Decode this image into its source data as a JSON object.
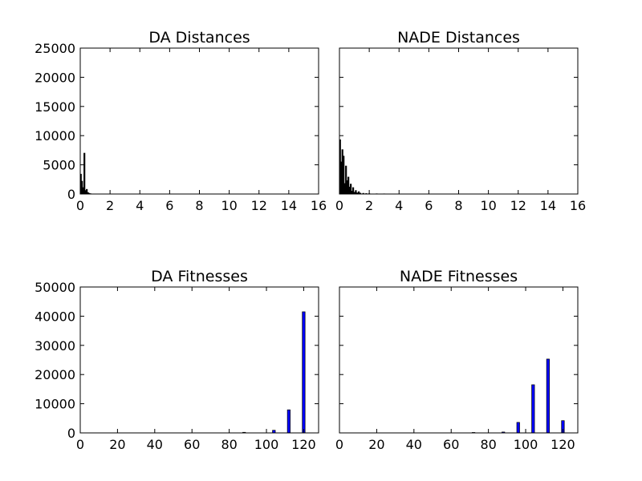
{
  "chart_data": [
    {
      "type": "bar",
      "title": "DA Distances",
      "xlabel": "",
      "ylabel": "",
      "xlim": [
        0,
        16
      ],
      "ylim": [
        0,
        25000
      ],
      "xticks": [
        0,
        2,
        4,
        6,
        8,
        10,
        12,
        14,
        16
      ],
      "yticks": [
        0,
        5000,
        10000,
        15000,
        20000,
        25000
      ],
      "bar_color": "#000000",
      "bin_width": 0.08,
      "x": [
        0.04,
        0.12,
        0.2,
        0.28,
        0.36,
        0.44,
        0.52,
        0.6,
        0.68
      ],
      "values": [
        3400,
        2200,
        1100,
        7000,
        600,
        800,
        250,
        120,
        60
      ]
    },
    {
      "type": "bar",
      "title": "NADE Distances",
      "xlabel": "",
      "ylabel": "",
      "xlim": [
        0,
        16
      ],
      "ylim": [
        0,
        25000
      ],
      "xticks": [
        0,
        2,
        4,
        6,
        8,
        10,
        12,
        14,
        16
      ],
      "yticks": [
        0,
        5000,
        10000,
        15000,
        20000,
        25000
      ],
      "bar_color": "#000000",
      "bin_width": 0.08,
      "x": [
        0.04,
        0.12,
        0.2,
        0.28,
        0.36,
        0.44,
        0.52,
        0.6,
        0.68,
        0.76,
        0.84,
        0.92,
        1.0,
        1.1,
        1.2,
        1.3,
        1.4,
        1.6,
        1.8,
        2.0,
        2.5,
        3.0
      ],
      "values": [
        9300,
        5500,
        7600,
        6500,
        1800,
        4800,
        2300,
        2900,
        1200,
        1700,
        500,
        1100,
        300,
        600,
        200,
        400,
        150,
        120,
        80,
        60,
        40,
        30
      ]
    },
    {
      "type": "bar",
      "title": "DA Fitnesses",
      "xlabel": "",
      "ylabel": "",
      "xlim": [
        0,
        128
      ],
      "ylim": [
        0,
        50000
      ],
      "xticks": [
        0,
        20,
        40,
        60,
        80,
        100,
        120
      ],
      "yticks": [
        0,
        10000,
        20000,
        30000,
        40000,
        50000
      ],
      "bar_color": "#0000ff",
      "bin_width": 1.5,
      "x": [
        88,
        104,
        112,
        120
      ],
      "values": [
        200,
        900,
        7900,
        41500
      ]
    },
    {
      "type": "bar",
      "title": "NADE Fitnesses",
      "xlabel": "",
      "ylabel": "",
      "xlim": [
        0,
        128
      ],
      "ylim": [
        0,
        50000
      ],
      "xticks": [
        0,
        20,
        40,
        60,
        80,
        100,
        120
      ],
      "yticks": [
        0,
        10000,
        20000,
        30000,
        40000,
        50000
      ],
      "bar_color": "#0000ff",
      "bin_width": 1.5,
      "x": [
        72,
        88,
        96,
        104,
        112,
        120
      ],
      "values": [
        150,
        300,
        3600,
        16500,
        25300,
        4200
      ]
    }
  ]
}
